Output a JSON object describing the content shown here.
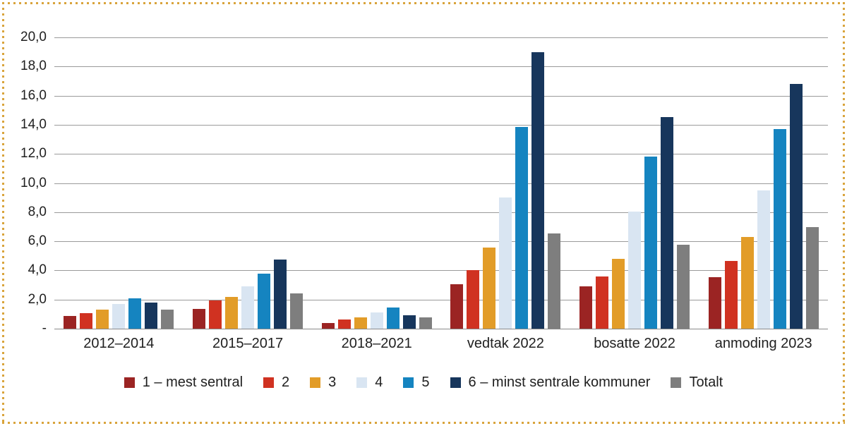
{
  "colors": {
    "frame_dots": "#d9a43c",
    "gridline": "#9a9a9a",
    "axis_baseline": "#8a8a8a",
    "text": "#1f1f1f"
  },
  "chart_data": {
    "type": "bar",
    "title": "",
    "categories": [
      "2012–2014",
      "2015–2017",
      "2018–2021",
      "vedtak 2022",
      "bosatte 2022",
      "anmoding 2023"
    ],
    "series": [
      {
        "name": "1 – mest sentral",
        "color": "#9b2423",
        "values": [
          0.85,
          1.35,
          0.4,
          3.05,
          2.9,
          3.55
        ]
      },
      {
        "name": "2",
        "color": "#d03221",
        "values": [
          1.05,
          1.95,
          0.65,
          4.0,
          3.6,
          4.65
        ]
      },
      {
        "name": "3",
        "color": "#e29c28",
        "values": [
          1.3,
          2.2,
          0.8,
          5.55,
          4.8,
          6.3
        ]
      },
      {
        "name": "4",
        "color": "#d9e5f2",
        "values": [
          1.7,
          2.9,
          1.1,
          9.0,
          8.05,
          9.5
        ]
      },
      {
        "name": "5",
        "color": "#1584c0",
        "values": [
          2.1,
          3.8,
          1.45,
          13.85,
          11.8,
          13.7
        ]
      },
      {
        "name": "6 – minst sentrale kommuner",
        "color": "#17365c",
        "values": [
          1.8,
          4.75,
          0.9,
          19.0,
          14.55,
          16.8
        ]
      },
      {
        "name": "Totalt",
        "color": "#7e7e7e",
        "values": [
          1.3,
          2.4,
          0.8,
          6.55,
          5.75,
          7.0
        ]
      }
    ],
    "y_axis": {
      "min": 0,
      "max": 20,
      "step": 2,
      "tick_labels": [
        "20,0",
        "18,0",
        "16,0",
        "14,0",
        "12,0",
        "10,0",
        "8,0",
        "6,0",
        "4,0",
        "2,0",
        "-"
      ]
    },
    "grid": true,
    "legend_position": "bottom"
  }
}
